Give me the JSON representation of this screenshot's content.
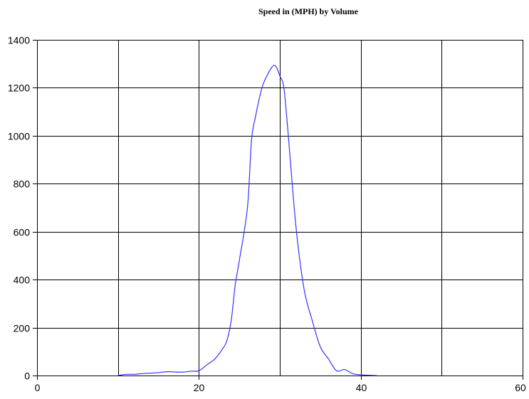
{
  "chart_data": {
    "type": "line",
    "title": "Speed in (MPH) by Volume",
    "xlabel": "",
    "ylabel": "",
    "xlim": [
      0,
      60
    ],
    "ylim": [
      0,
      1400
    ],
    "x_ticks": [
      0,
      20,
      40,
      60
    ],
    "x_tick_labels": [
      "0",
      "20",
      "40",
      "60"
    ],
    "y_ticks": [
      0,
      200,
      400,
      600,
      800,
      1000,
      1200,
      1400
    ],
    "y_tick_labels": [
      "0",
      "200",
      "400",
      "600",
      "800",
      "1000",
      "1200",
      "1400"
    ],
    "x_grid": [
      0,
      10,
      20,
      30,
      40,
      50,
      60
    ],
    "grid": true,
    "legend": "none",
    "series": [
      {
        "color": "#3333ff",
        "x": [
          10,
          10.5,
          11,
          12,
          13,
          14,
          15,
          16,
          17,
          18,
          19,
          20,
          21,
          22,
          23,
          23.5,
          24,
          24.5,
          25,
          26,
          26.5,
          27,
          27.5,
          28,
          29,
          29.5,
          30,
          30.5,
          31,
          32,
          33,
          34,
          35,
          36,
          37,
          38,
          39,
          40,
          41,
          42
        ],
        "y": [
          0,
          3,
          5,
          5,
          8,
          10,
          12,
          16,
          15,
          14,
          18,
          20,
          45,
          70,
          115,
          150,
          230,
          380,
          480,
          700,
          980,
          1080,
          1160,
          1220,
          1285,
          1290,
          1250,
          1200,
          1020,
          620,
          360,
          230,
          120,
          70,
          20,
          25,
          8,
          3,
          1,
          0
        ]
      }
    ]
  }
}
